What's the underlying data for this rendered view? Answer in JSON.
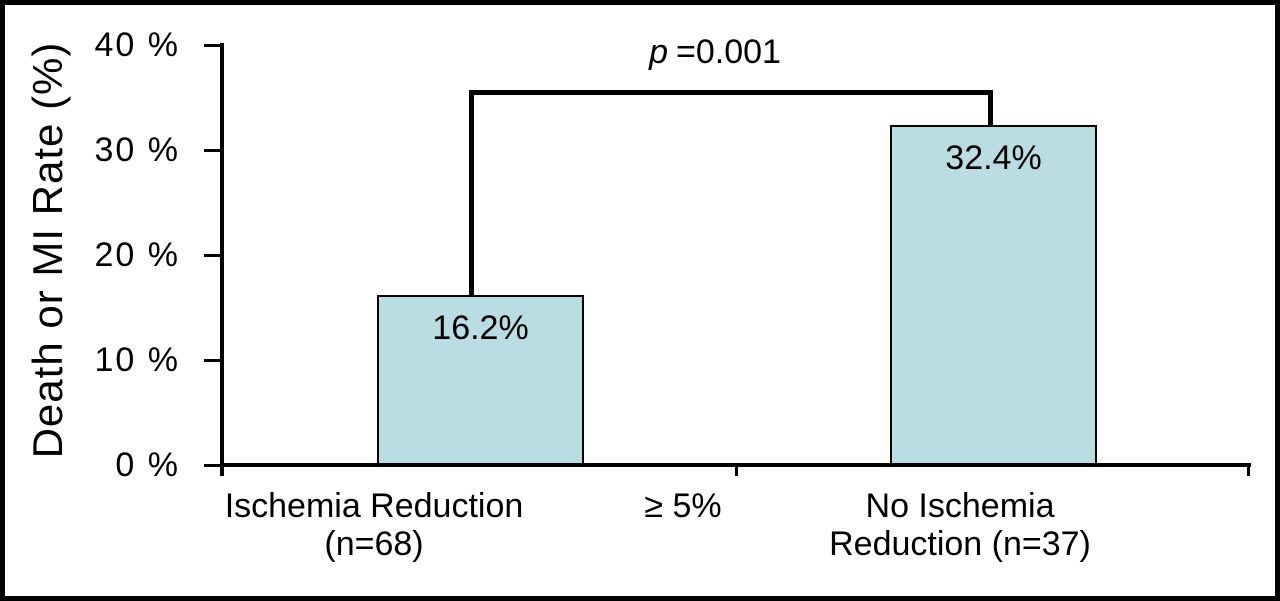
{
  "chart_data": {
    "type": "bar",
    "title": "",
    "ylabel": "Death or MI Rate (%)",
    "xlabel": "",
    "ylim": [
      0,
      40
    ],
    "grid": false,
    "legend": false,
    "yticks": [
      {
        "value": 40,
        "label": "40 %"
      },
      {
        "value": 30,
        "label": "30 %"
      },
      {
        "value": 20,
        "label": "20 %"
      },
      {
        "value": 10,
        "label": "10 %"
      },
      {
        "value": 0,
        "label": "0 %"
      }
    ],
    "bars": [
      {
        "value": 16.2,
        "value_label": "16.2%",
        "n": 68,
        "label_line1": "Ischemia Reduction",
        "label_line2": "(n=68)"
      },
      {
        "value": 32.4,
        "value_label": "32.4%",
        "n": 37,
        "label_line1": "No Ischemia",
        "label_line2": "Reduction (n=37)"
      }
    ],
    "between_categories_label": "≥ 5%",
    "significance": {
      "p_symbol": "p",
      "p_value_text": "=0.001"
    },
    "colors": {
      "bar_fill": "#badde3",
      "line": "#000000",
      "background": "#ffffff"
    }
  }
}
